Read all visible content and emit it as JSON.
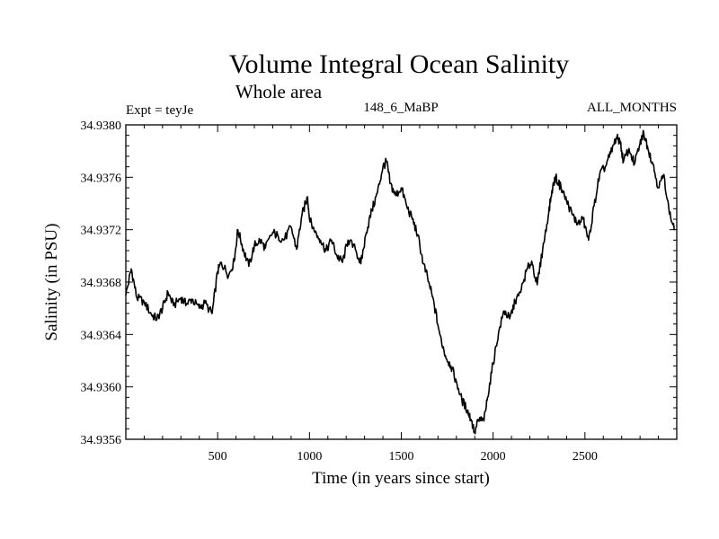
{
  "chart_data": {
    "type": "line",
    "title": "Volume Integral Ocean Salinity",
    "subtitle": "Whole area",
    "left_label": "Expt = teyJe",
    "center_label": "148_6_MaBP",
    "right_label": "ALL_MONTHS",
    "xlabel": "Time (in years since start)",
    "ylabel": "Salinity (in PSU)",
    "xlim": [
      0,
      3000
    ],
    "ylim": [
      34.9356,
      34.938
    ],
    "x_ticks": [
      500,
      1000,
      1500,
      2000,
      2500
    ],
    "x_tick_labels": [
      "500",
      "1000",
      "1500",
      "2000",
      "2500"
    ],
    "y_ticks": [
      34.9356,
      34.936,
      34.9364,
      34.9368,
      34.9372,
      34.9376,
      34.938
    ],
    "y_tick_labels": [
      "34.9356",
      "34.9360",
      "34.9364",
      "34.9368",
      "34.9372",
      "34.9376",
      "34.9380"
    ],
    "grid": false,
    "series": [
      {
        "name": "salinity",
        "color": "#000000",
        "x": [
          0,
          30,
          60,
          100,
          140,
          170,
          200,
          230,
          260,
          300,
          330,
          360,
          400,
          430,
          470,
          500,
          520,
          560,
          590,
          610,
          640,
          670,
          700,
          730,
          760,
          800,
          830,
          860,
          900,
          930,
          960,
          990,
          1000,
          1030,
          1060,
          1090,
          1120,
          1150,
          1180,
          1210,
          1250,
          1280,
          1310,
          1340,
          1370,
          1400,
          1420,
          1440,
          1470,
          1500,
          1530,
          1560,
          1590,
          1620,
          1650,
          1680,
          1710,
          1740,
          1770,
          1800,
          1830,
          1860,
          1880,
          1900,
          1920,
          1950,
          1970,
          2000,
          2030,
          2060,
          2090,
          2120,
          2150,
          2180,
          2210,
          2240,
          2270,
          2300,
          2320,
          2340,
          2370,
          2400,
          2430,
          2460,
          2490,
          2520,
          2550,
          2580,
          2610,
          2640,
          2670,
          2690,
          2710,
          2740,
          2770,
          2800,
          2820,
          2840,
          2870,
          2900,
          2930,
          2960,
          2990
        ],
        "values": [
          34.9367,
          34.9369,
          34.93668,
          34.93665,
          34.93655,
          34.93652,
          34.9366,
          34.93672,
          34.93662,
          34.93668,
          34.93663,
          34.93667,
          34.9366,
          34.93664,
          34.93656,
          34.93688,
          34.93695,
          34.93685,
          34.93696,
          34.9372,
          34.93705,
          34.93692,
          34.93708,
          34.93712,
          34.93706,
          34.93718,
          34.93715,
          34.93712,
          34.93722,
          34.93705,
          34.93732,
          34.93745,
          34.93728,
          34.93718,
          34.93712,
          34.93704,
          34.93712,
          34.937,
          34.93695,
          34.93712,
          34.93705,
          34.93694,
          34.93718,
          34.93735,
          34.93748,
          34.93768,
          34.93772,
          34.93755,
          34.93746,
          34.93752,
          34.93738,
          34.93728,
          34.93716,
          34.93694,
          34.9368,
          34.93662,
          34.9364,
          34.93624,
          34.93616,
          34.93604,
          34.9359,
          34.93582,
          34.93575,
          34.93565,
          34.93575,
          34.93574,
          34.93592,
          34.93618,
          34.93642,
          34.93658,
          34.93652,
          34.93665,
          34.93672,
          34.93688,
          34.93696,
          34.93678,
          34.93705,
          34.9373,
          34.9375,
          34.9376,
          34.93752,
          34.93742,
          34.93732,
          34.93724,
          34.93728,
          34.93712,
          34.93738,
          34.93762,
          34.93768,
          34.93778,
          34.9379,
          34.93788,
          34.93772,
          34.93782,
          34.9377,
          34.93786,
          34.93794,
          34.93784,
          34.9377,
          34.93752,
          34.93762,
          34.93732,
          34.9372
        ]
      }
    ]
  }
}
